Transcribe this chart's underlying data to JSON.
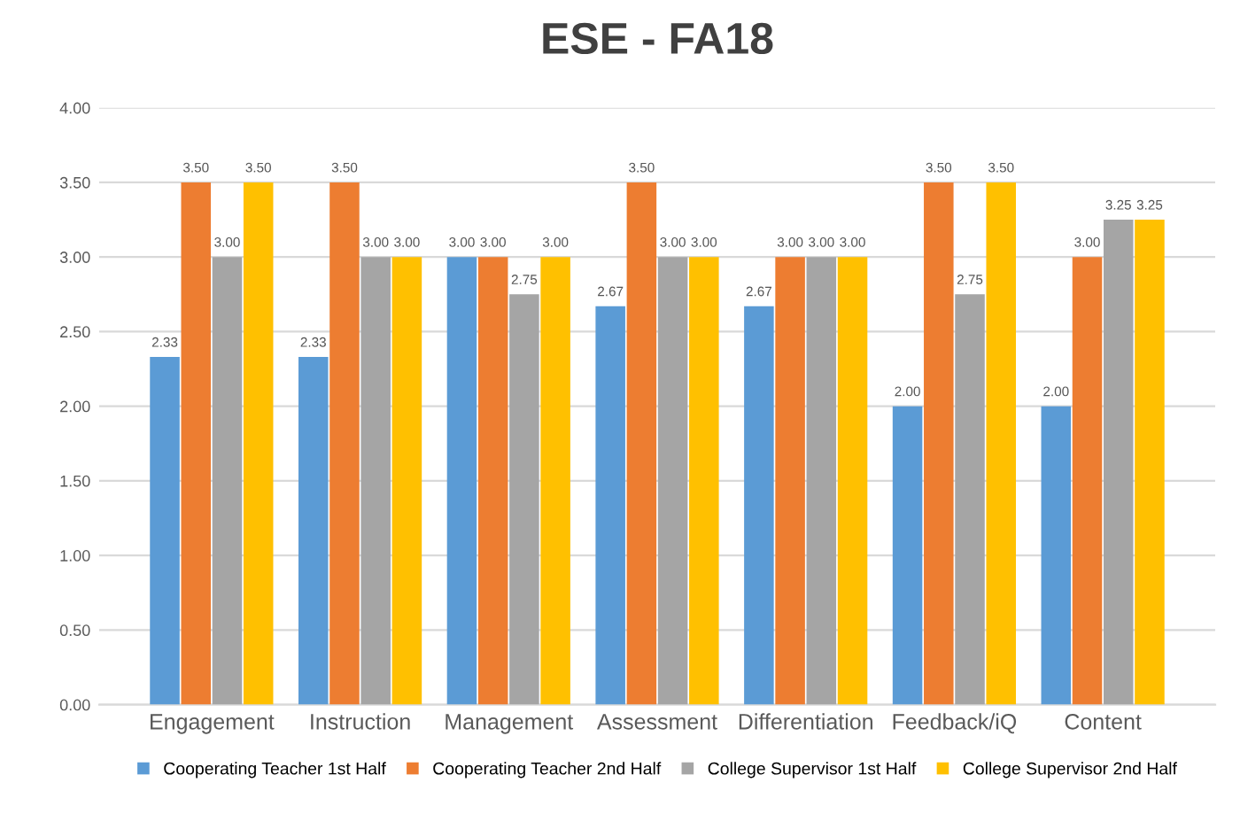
{
  "chart_data": {
    "type": "bar",
    "title": "ESE - FA18",
    "categories": [
      "Engagement",
      "Instruction",
      "Management",
      "Assessment",
      "Differentiation",
      "Feedback/iQ",
      "Content"
    ],
    "series": [
      {
        "name": "Cooperating Teacher 1st Half",
        "color": "#5b9bd5",
        "values": [
          2.33,
          2.33,
          3,
          2.67,
          2.67,
          2,
          2
        ],
        "value_labels": [
          "2.33",
          "2.33",
          "3.00",
          "2.67",
          "2.67",
          "2.00",
          "2.00"
        ]
      },
      {
        "name": "Cooperating Teacher 2nd Half",
        "color": "#ed7d31",
        "values": [
          3.5,
          3.5,
          3,
          3.5,
          3,
          3.5,
          3
        ],
        "value_labels": [
          "3.50",
          "3.50",
          "3.00",
          "3.50",
          "3.00",
          "3.50",
          "3.00"
        ]
      },
      {
        "name": "College Supervisor 1st Half",
        "color": "#a5a5a5",
        "values": [
          3,
          3,
          2.75,
          3,
          3,
          2.75,
          3.25
        ],
        "value_labels": [
          "3.00",
          "3.00",
          "2.75",
          "3.00",
          "3.00",
          "2.75",
          "3.25"
        ]
      },
      {
        "name": "College Supervisor 2nd Half",
        "color": "#ffc000",
        "values": [
          3.5,
          3,
          3,
          3,
          3,
          3.5,
          3.25
        ],
        "value_labels": [
          "3.50",
          "3.00",
          "3.00",
          "3.00",
          "3.00",
          "3.50",
          "3.25"
        ]
      }
    ],
    "ylim": [
      0,
      4
    ],
    "yticks": [
      {
        "value": 0,
        "label": "0.00"
      },
      {
        "value": 0.5,
        "label": "0.50"
      },
      {
        "value": 1,
        "label": "1.00"
      },
      {
        "value": 1.5,
        "label": "1.50"
      },
      {
        "value": 2,
        "label": "2.00"
      },
      {
        "value": 2.5,
        "label": "2.50"
      },
      {
        "value": 3,
        "label": "3.00"
      },
      {
        "value": 3.5,
        "label": "3.50"
      },
      {
        "value": 4,
        "label": "4.00"
      }
    ],
    "grid": "y",
    "legend": "bottom"
  }
}
